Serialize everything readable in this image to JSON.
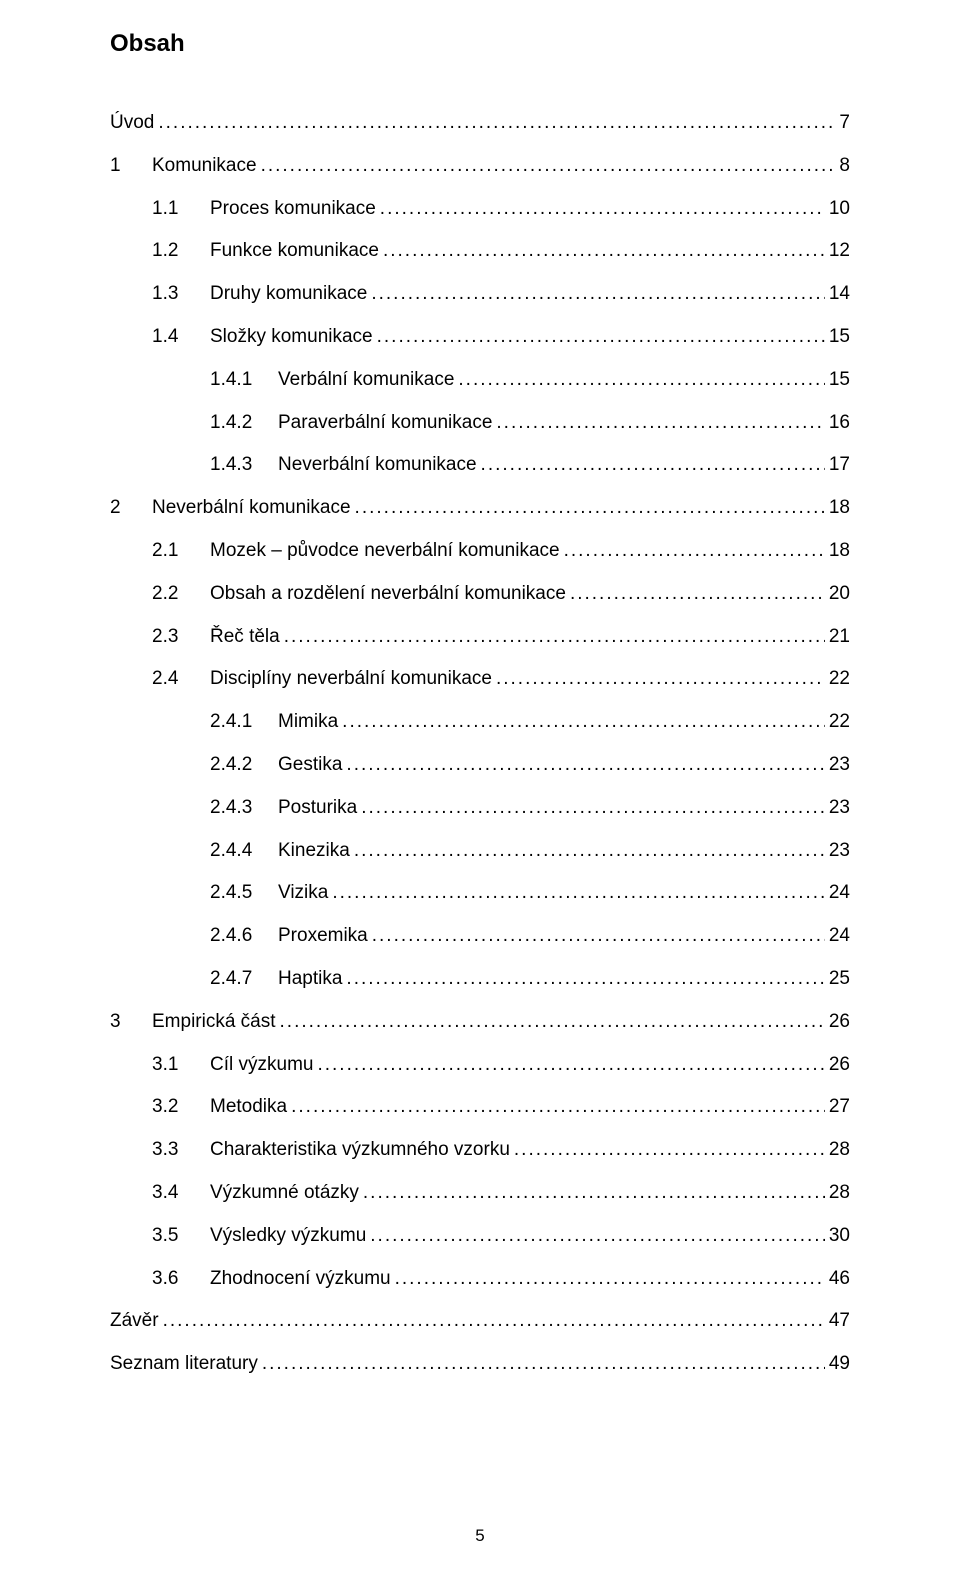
{
  "title": "Obsah",
  "footer_page_number": "5",
  "entries": [
    {
      "level": 0,
      "num": "",
      "label": "Úvod",
      "page": "7"
    },
    {
      "level": 1,
      "num": "1",
      "label": "Komunikace",
      "page": "8"
    },
    {
      "level": 2,
      "num": "1.1",
      "label": "Proces komunikace",
      "page": "10"
    },
    {
      "level": 2,
      "num": "1.2",
      "label": "Funkce komunikace",
      "page": "12"
    },
    {
      "level": 2,
      "num": "1.3",
      "label": "Druhy komunikace",
      "page": "14"
    },
    {
      "level": 2,
      "num": "1.4",
      "label": "Složky komunikace",
      "page": "15"
    },
    {
      "level": 3,
      "num": "1.4.1",
      "label": "Verbální komunikace",
      "page": "15"
    },
    {
      "level": 3,
      "num": "1.4.2",
      "label": "Paraverbální komunikace",
      "page": "16"
    },
    {
      "level": 3,
      "num": "1.4.3",
      "label": "Neverbální komunikace",
      "page": "17"
    },
    {
      "level": 1,
      "num": "2",
      "label": "Neverbální komunikace",
      "page": "18"
    },
    {
      "level": 2,
      "num": "2.1",
      "label": "Mozek – původce neverbální komunikace",
      "page": "18"
    },
    {
      "level": 2,
      "num": "2.2",
      "label": "Obsah a rozdělení neverbální komunikace",
      "page": "20"
    },
    {
      "level": 2,
      "num": "2.3",
      "label": "Řeč těla",
      "page": "21"
    },
    {
      "level": 2,
      "num": "2.4",
      "label": "Disciplíny neverbální komunikace",
      "page": "22"
    },
    {
      "level": 3,
      "num": "2.4.1",
      "label": "Mimika",
      "page": "22"
    },
    {
      "level": 3,
      "num": "2.4.2",
      "label": "Gestika",
      "page": "23"
    },
    {
      "level": 3,
      "num": "2.4.3",
      "label": "Posturika",
      "page": "23"
    },
    {
      "level": 3,
      "num": "2.4.4",
      "label": "Kinezika",
      "page": "23"
    },
    {
      "level": 3,
      "num": "2.4.5",
      "label": "Vizika",
      "page": "24"
    },
    {
      "level": 3,
      "num": "2.4.6",
      "label": "Proxemika",
      "page": "24"
    },
    {
      "level": 3,
      "num": "2.4.7",
      "label": "Haptika",
      "page": "25"
    },
    {
      "level": 1,
      "num": "3",
      "label": "Empirická část",
      "page": "26"
    },
    {
      "level": 2,
      "num": "3.1",
      "label": "Cíl výzkumu",
      "page": "26"
    },
    {
      "level": 2,
      "num": "3.2",
      "label": "Metodika",
      "page": "27"
    },
    {
      "level": 2,
      "num": "3.3",
      "label": "Charakteristika výzkumného vzorku",
      "page": "28"
    },
    {
      "level": 2,
      "num": "3.4",
      "label": "Výzkumné otázky",
      "page": "28"
    },
    {
      "level": 2,
      "num": "3.5",
      "label": "Výsledky výzkumu",
      "page": "30"
    },
    {
      "level": 2,
      "num": "3.6",
      "label": "Zhodnocení výzkumu",
      "page": "46"
    },
    {
      "level": 0,
      "num": "",
      "label": "Závěr",
      "page": "47"
    },
    {
      "level": 0,
      "num": "",
      "label": "Seznam literatury",
      "page": "49"
    }
  ]
}
